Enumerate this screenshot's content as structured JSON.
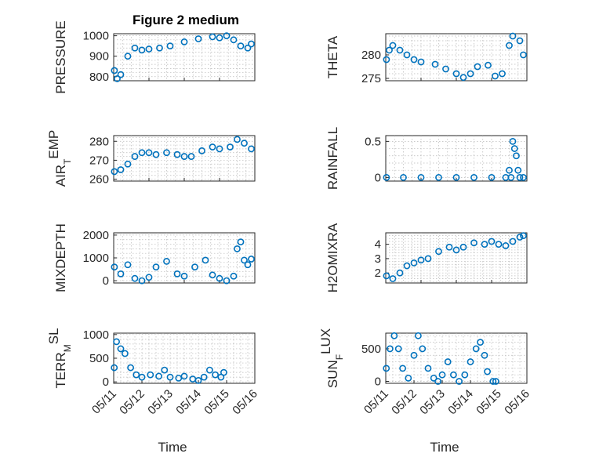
{
  "chart_data": [
    {
      "type": "scatter",
      "title": "Figure 2 medium",
      "ylabel": "PRESSURE",
      "ylabel_sub": "",
      "ylabel_tail": "",
      "xlabel": "",
      "ylim": [
        780,
        1010
      ],
      "yticks": [
        800,
        900,
        1000
      ],
      "xtick_labels": [],
      "x_days": [
        0,
        4
      ],
      "x": [
        0.02,
        0.1,
        0.2,
        0.4,
        0.6,
        0.8,
        1.0,
        1.3,
        1.6,
        2.0,
        2.4,
        2.8,
        3.0,
        3.2,
        3.4,
        3.6,
        3.8,
        3.9
      ],
      "y": [
        830,
        790,
        810,
        900,
        940,
        930,
        935,
        940,
        950,
        970,
        985,
        995,
        990,
        1000,
        980,
        950,
        940,
        960
      ]
    },
    {
      "type": "scatter",
      "title": "",
      "ylabel": "THETA",
      "ylabel_sub": "",
      "ylabel_tail": "",
      "xlabel": "",
      "ylim": [
        274.5,
        284.5
      ],
      "yticks": [
        275,
        280
      ],
      "xtick_labels": [],
      "x_days": [
        0,
        4
      ],
      "x": [
        0.02,
        0.1,
        0.2,
        0.4,
        0.6,
        0.8,
        1.0,
        1.4,
        1.7,
        2.0,
        2.2,
        2.4,
        2.6,
        2.9,
        3.1,
        3.3,
        3.5,
        3.6,
        3.8,
        3.9
      ],
      "y": [
        279,
        281,
        282,
        281,
        280,
        279,
        278.5,
        278,
        277,
        276,
        275.2,
        276,
        277.5,
        277.8,
        275.5,
        276,
        282,
        284,
        283,
        280
      ]
    },
    {
      "type": "scatter",
      "title": "",
      "ylabel": "AIR",
      "ylabel_sub": "T",
      "ylabel_tail": "EMP",
      "xlabel": "",
      "ylim": [
        259,
        283
      ],
      "yticks": [
        260,
        270,
        280
      ],
      "xtick_labels": [],
      "x_days": [
        0,
        4
      ],
      "x": [
        0.02,
        0.2,
        0.4,
        0.6,
        0.8,
        1.0,
        1.2,
        1.5,
        1.8,
        2.0,
        2.2,
        2.5,
        2.8,
        3.0,
        3.3,
        3.5,
        3.7,
        3.9
      ],
      "y": [
        264,
        265,
        268,
        272,
        274,
        274,
        273,
        274,
        273,
        272,
        272,
        275,
        277,
        276,
        277,
        281,
        279,
        276
      ]
    },
    {
      "type": "scatter",
      "title": "",
      "ylabel": "RAINFALL",
      "ylabel_sub": "",
      "ylabel_tail": "",
      "xlabel": "",
      "ylim": [
        -0.05,
        0.58
      ],
      "yticks": [
        0,
        0.5
      ],
      "xtick_labels": [],
      "x_days": [
        0,
        4
      ],
      "x": [
        0.02,
        0.5,
        1.0,
        1.5,
        2.0,
        2.5,
        3.0,
        3.4,
        3.5,
        3.55,
        3.6,
        3.65,
        3.7,
        3.75,
        3.8,
        3.9
      ],
      "y": [
        0,
        0,
        0,
        0,
        0,
        0,
        0,
        0,
        0.1,
        0,
        0.5,
        0.4,
        0.3,
        0.1,
        0,
        0
      ]
    },
    {
      "type": "scatter",
      "title": "",
      "ylabel": "MIXDEPTH",
      "ylabel_sub": "",
      "ylabel_tail": "",
      "xlabel": "",
      "ylim": [
        -100,
        2100
      ],
      "yticks": [
        0,
        1000,
        2000
      ],
      "xtick_labels": [],
      "x_days": [
        0,
        4
      ],
      "x": [
        0.02,
        0.2,
        0.4,
        0.6,
        0.8,
        1.0,
        1.2,
        1.5,
        1.8,
        2.0,
        2.3,
        2.6,
        2.8,
        3.0,
        3.2,
        3.4,
        3.5,
        3.6,
        3.7,
        3.8,
        3.9
      ],
      "y": [
        600,
        300,
        700,
        100,
        0,
        150,
        600,
        850,
        300,
        200,
        600,
        900,
        250,
        100,
        0,
        200,
        1400,
        1700,
        900,
        700,
        950
      ]
    },
    {
      "type": "scatter",
      "title": "",
      "ylabel": "H2OMIXRA",
      "ylabel_sub": "",
      "ylabel_tail": "",
      "xlabel": "",
      "ylim": [
        1.3,
        4.8
      ],
      "yticks": [
        2,
        3,
        4
      ],
      "xtick_labels": [],
      "x_days": [
        0,
        4
      ],
      "x": [
        0.02,
        0.2,
        0.4,
        0.6,
        0.8,
        1.0,
        1.2,
        1.5,
        1.8,
        2.0,
        2.2,
        2.5,
        2.8,
        3.0,
        3.2,
        3.4,
        3.6,
        3.8,
        3.9
      ],
      "y": [
        1.8,
        1.6,
        2.0,
        2.5,
        2.7,
        2.9,
        3.0,
        3.5,
        3.8,
        3.6,
        3.8,
        4.1,
        4.0,
        4.2,
        4.0,
        3.9,
        4.2,
        4.5,
        4.6
      ]
    },
    {
      "type": "scatter",
      "title": "",
      "ylabel": "TERR",
      "ylabel_sub": "M",
      "ylabel_tail": "SL",
      "xlabel": "Time",
      "ylim": [
        -30,
        1030
      ],
      "yticks": [
        0,
        500,
        1000
      ],
      "xtick_labels": [
        "05/11",
        "05/12",
        "05/13",
        "05/14",
        "05/15",
        "05/16"
      ],
      "x_days": [
        0,
        5
      ],
      "x": [
        0.02,
        0.1,
        0.25,
        0.4,
        0.6,
        0.8,
        1.0,
        1.3,
        1.6,
        1.8,
        2.0,
        2.3,
        2.5,
        2.8,
        3.0,
        3.2,
        3.4,
        3.6,
        3.8,
        3.9
      ],
      "y": [
        300,
        850,
        700,
        600,
        300,
        150,
        100,
        150,
        120,
        250,
        100,
        80,
        120,
        60,
        30,
        100,
        250,
        150,
        100,
        200
      ]
    },
    {
      "type": "scatter",
      "title": "",
      "ylabel": "SUN",
      "ylabel_sub": "F",
      "ylabel_tail": "LUX",
      "xlabel": "Time",
      "ylim": [
        -30,
        740
      ],
      "yticks": [
        0,
        500
      ],
      "xtick_labels": [
        "05/11",
        "05/12",
        "05/13",
        "05/14",
        "05/15",
        "05/16"
      ],
      "x_days": [
        0,
        5
      ],
      "x": [
        0.02,
        0.15,
        0.3,
        0.45,
        0.6,
        0.8,
        1.0,
        1.15,
        1.3,
        1.5,
        1.7,
        1.85,
        2.0,
        2.2,
        2.4,
        2.6,
        2.8,
        3.0,
        3.2,
        3.35,
        3.5,
        3.6,
        3.8,
        3.9
      ],
      "y": [
        200,
        500,
        700,
        500,
        200,
        50,
        400,
        700,
        500,
        200,
        50,
        0,
        100,
        300,
        100,
        0,
        100,
        300,
        500,
        600,
        400,
        150,
        0,
        0
      ]
    }
  ],
  "colors": {
    "marker": "#0072BD",
    "axis": "#262626",
    "grid": "#b8b8b8"
  }
}
